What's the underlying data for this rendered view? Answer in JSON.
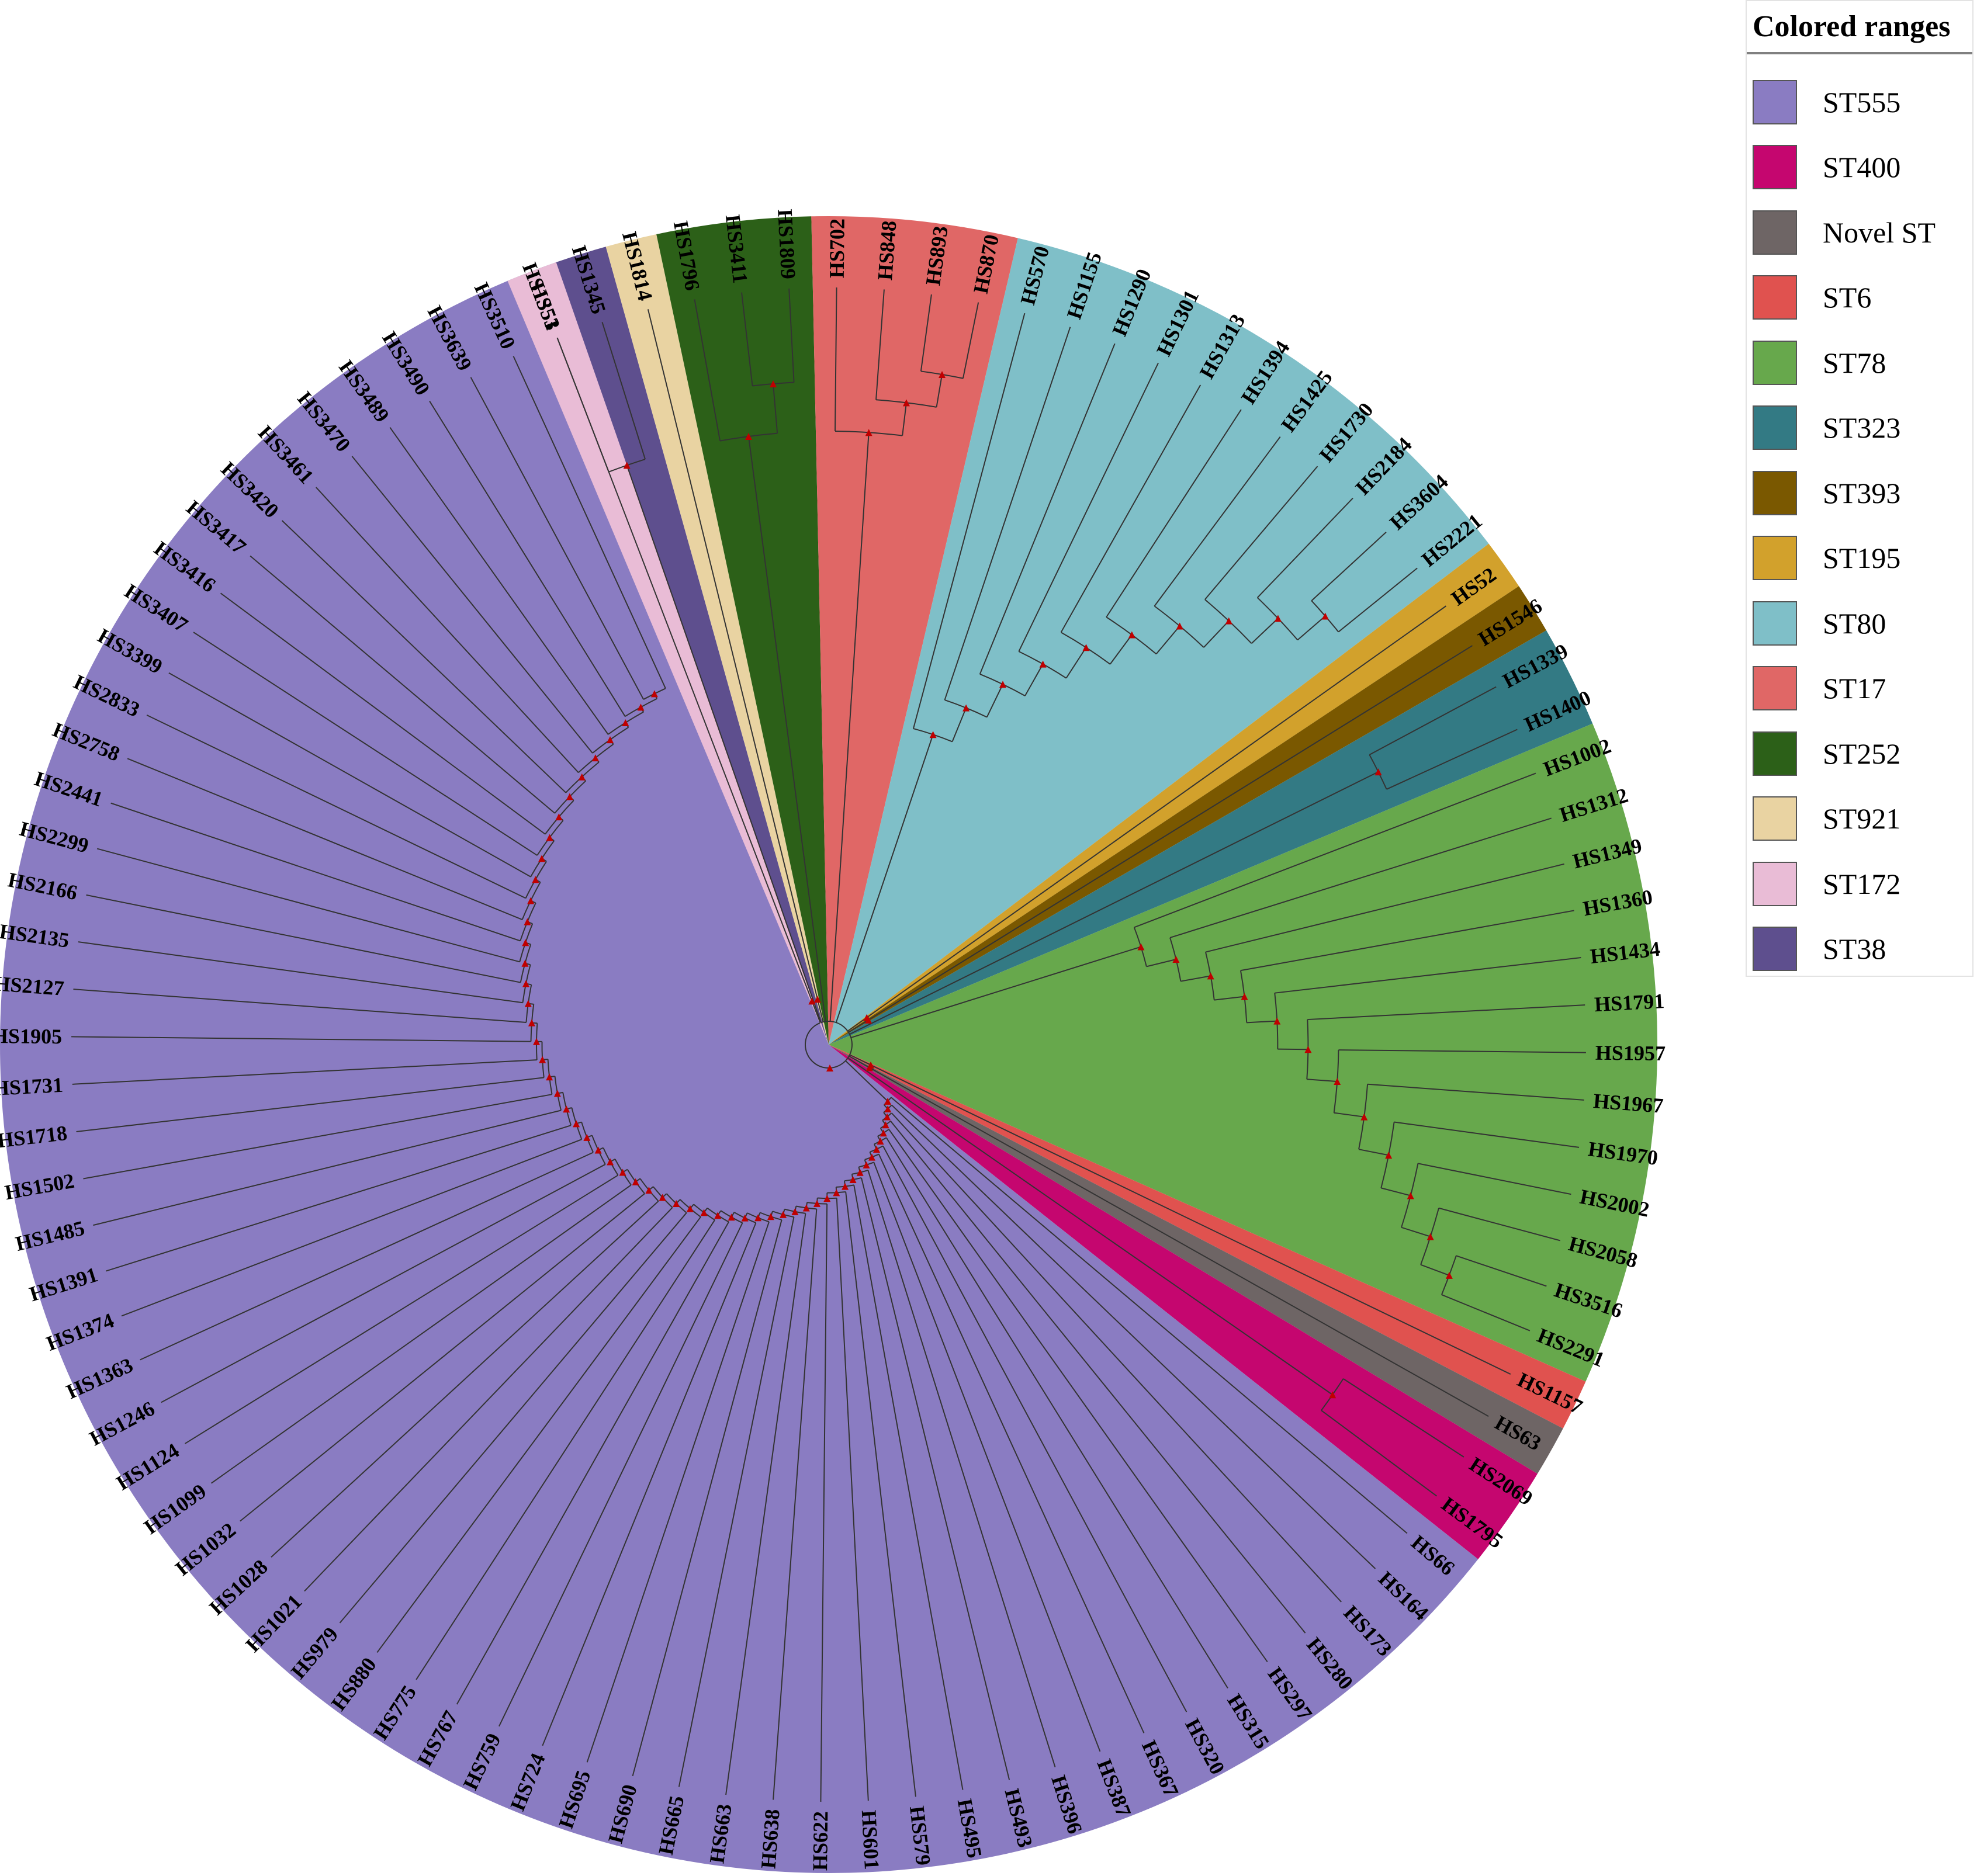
{
  "legend": {
    "title": "Colored ranges",
    "items": [
      {
        "label": "ST555",
        "color": "#8a7cc2"
      },
      {
        "label": "ST400",
        "color": "#c5066f"
      },
      {
        "label": "Novel ST",
        "color": "#6e6565"
      },
      {
        "label": "ST6",
        "color": "#e0524f"
      },
      {
        "label": "ST78",
        "color": "#67a84c"
      },
      {
        "label": "ST323",
        "color": "#337a84"
      },
      {
        "label": "ST393",
        "color": "#7a5800"
      },
      {
        "label": "ST195",
        "color": "#d2a12c"
      },
      {
        "label": "ST80",
        "color": "#7fbfc8"
      },
      {
        "label": "ST17",
        "color": "#e06766"
      },
      {
        "label": "ST252",
        "color": "#2c6018"
      },
      {
        "label": "ST921",
        "color": "#e9d3a2"
      },
      {
        "label": "ST172",
        "color": "#e9bcd6"
      },
      {
        "label": "ST38",
        "color": "#5e4f8e"
      }
    ]
  },
  "tree": {
    "node_marker_color": "#c00000",
    "branch_color": "#333333",
    "clades": [
      {
        "group": "ST38",
        "leaves": [
          "HS1351",
          "HS1345"
        ]
      },
      {
        "group": "ST921",
        "leaves": [
          "HS1814"
        ]
      },
      {
        "group": "ST252",
        "leaves": [
          "HS1796",
          "HS3411",
          "HS1809"
        ]
      },
      {
        "group": "ST17",
        "leaves": [
          "HS702",
          "HS848",
          "HS893",
          "HS870"
        ]
      },
      {
        "group": "ST80",
        "leaves": [
          "HS570",
          "HS1155",
          "HS1290",
          "HS1301",
          "HS1313",
          "HS1394",
          "HS1425",
          "HS1730",
          "HS2184",
          "HS3604",
          "HS2221"
        ]
      },
      {
        "group": "ST195",
        "leaves": [
          "HS52"
        ]
      },
      {
        "group": "ST393",
        "leaves": [
          "HS1546"
        ]
      },
      {
        "group": "ST323",
        "leaves": [
          "HS1339",
          "HS1400"
        ]
      },
      {
        "group": "ST78",
        "leaves": [
          "HS1002",
          "HS1312",
          "HS1349",
          "HS1360",
          "HS1434",
          "HS1791",
          "HS1957",
          "HS1967",
          "HS1970",
          "HS2002",
          "HS2058",
          "HS3516",
          "HS2291"
        ]
      },
      {
        "group": "ST6",
        "leaves": [
          "HS1157"
        ]
      },
      {
        "group": "Novel ST",
        "leaves": [
          "HS63"
        ]
      },
      {
        "group": "ST400",
        "leaves": [
          "HS2069",
          "HS1795"
        ]
      },
      {
        "group": "ST555",
        "leaves": [
          "HS66",
          "HS164",
          "HS173",
          "HS280",
          "HS297",
          "HS315",
          "HS320",
          "HS367",
          "HS387",
          "HS396",
          "HS493",
          "HS495",
          "HS579",
          "HS601",
          "HS622",
          "HS638",
          "HS663",
          "HS665",
          "HS690",
          "HS695",
          "HS724",
          "HS759",
          "HS767",
          "HS775",
          "HS880",
          "HS979",
          "HS1021",
          "HS1028",
          "HS1032",
          "HS1099",
          "HS1124",
          "HS1246",
          "HS1363",
          "HS1374",
          "HS1391",
          "HS1485",
          "HS1502",
          "HS1718",
          "HS1731",
          "HS1905",
          "HS2127",
          "HS2135",
          "HS2166",
          "HS2299",
          "HS2441",
          "HS2758",
          "HS2833",
          "HS3399",
          "HS3407",
          "HS3416",
          "HS3417",
          "HS3420",
          "HS3461",
          "HS3470",
          "HS3489",
          "HS3490",
          "HS3639",
          "HS3510"
        ]
      },
      {
        "group": "ST172",
        "leaves": [
          "HS53"
        ]
      }
    ]
  }
}
